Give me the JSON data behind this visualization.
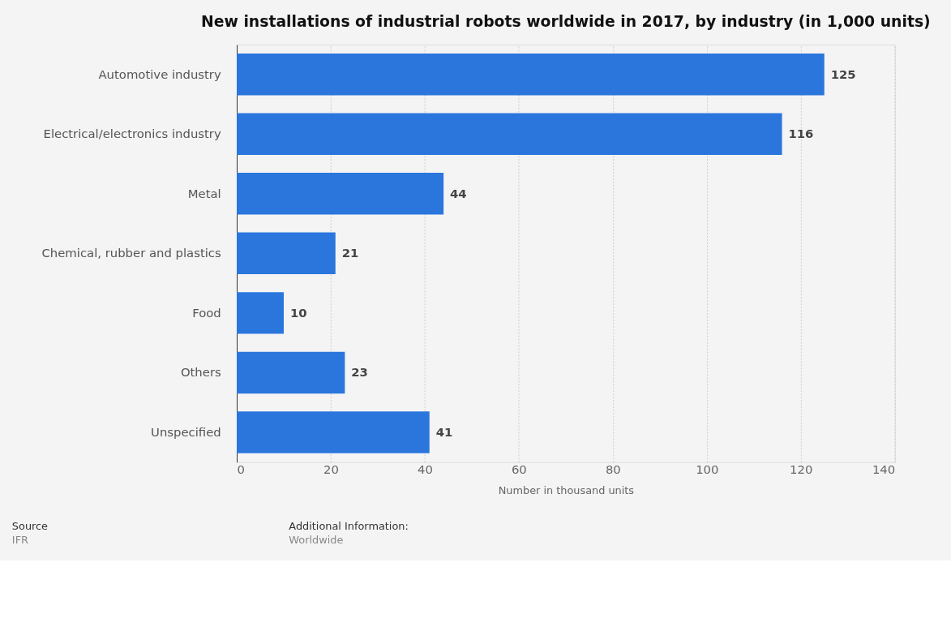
{
  "chart_data": {
    "type": "bar",
    "orientation": "horizontal",
    "title": "New installations of industrial robots worldwide in 2017, by industry (in 1,000 units)",
    "xlabel": "Number in thousand units",
    "categories": [
      "Automotive industry",
      "Electrical/electronics industry",
      "Metal",
      "Chemical, rubber and plastics",
      "Food",
      "Others",
      "Unspecified"
    ],
    "values": [
      125,
      116,
      44,
      21,
      10,
      23,
      41
    ],
    "color": "#2a76dd",
    "xlim": [
      0,
      140
    ],
    "xticks": [
      0,
      20,
      40,
      60,
      80,
      100,
      120,
      140
    ],
    "grid": "x",
    "data_labels": true,
    "annotations": [
      "Source",
      "IFR",
      "Additional Information:",
      "Worldwide"
    ]
  }
}
